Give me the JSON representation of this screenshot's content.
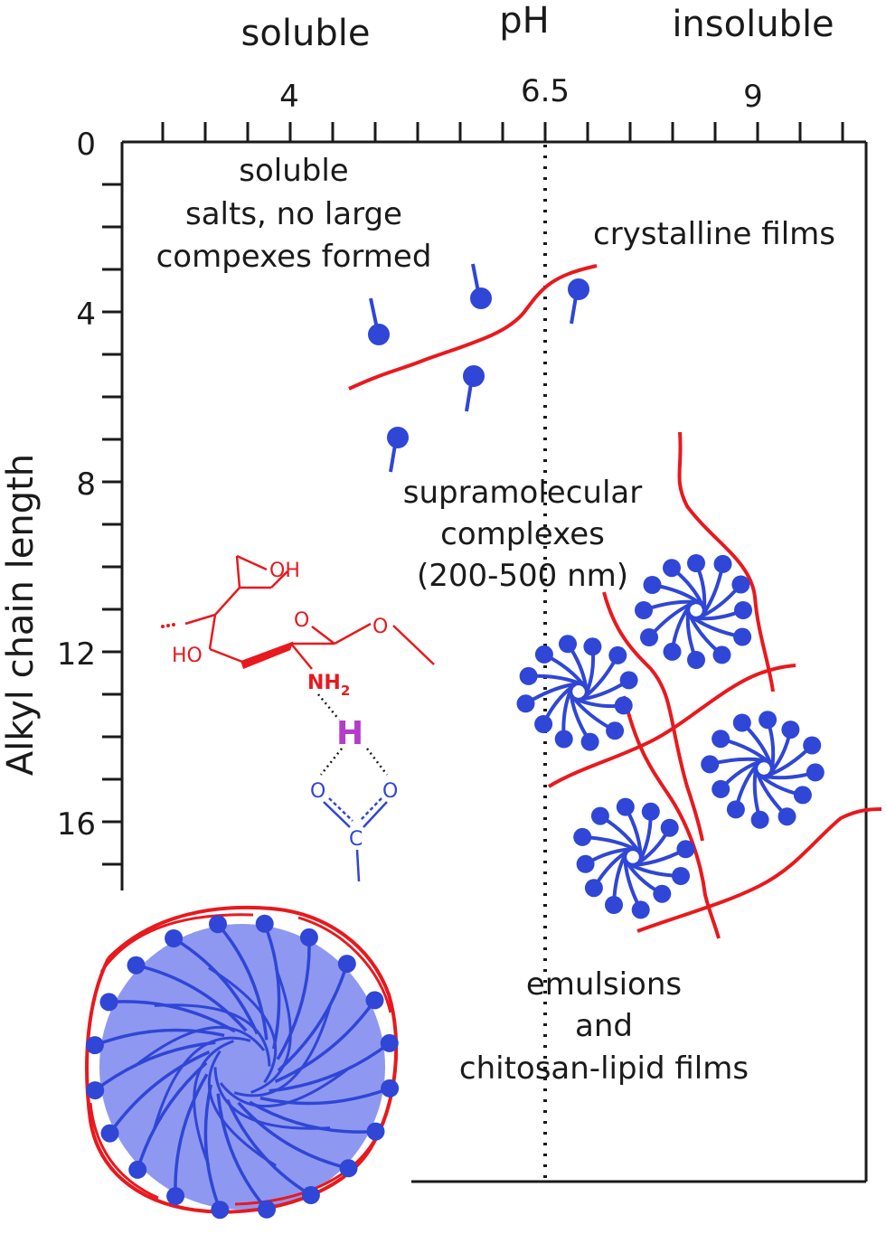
{
  "top_labels": {
    "soluble": "soluble",
    "ph": "pH",
    "insoluble": "insoluble"
  },
  "x_ticks": [
    "4",
    "6.5",
    "9"
  ],
  "y_ticks": [
    "0",
    "4",
    "8",
    "12",
    "16"
  ],
  "y_axis_label": "Alkyl chain length",
  "regions": {
    "soluble_salts": [
      "soluble",
      "salts, no large",
      "compexes formed"
    ],
    "crystalline": "crystalline films",
    "supramolecular": [
      "supramolecular",
      "complexes",
      "(200-500 nm)"
    ],
    "emulsions": [
      "emulsions",
      "and",
      "chitosan-lipid films"
    ]
  },
  "chem": {
    "oh_top": "OH",
    "o_ring": "O",
    "ho_left": "HO",
    "o_glyco": "O",
    "nh": "NH",
    "nh_sub": "2",
    "h": "H",
    "o_left": "O",
    "o_right": "O",
    "c": "C"
  },
  "colors": {
    "polymer_red": "#e8191e",
    "lipid_blue": "#2f46d6",
    "droplet_fill": "#8f98f0",
    "hbond_purple": "#b43cc8",
    "axis": "#1a1a1a"
  }
}
